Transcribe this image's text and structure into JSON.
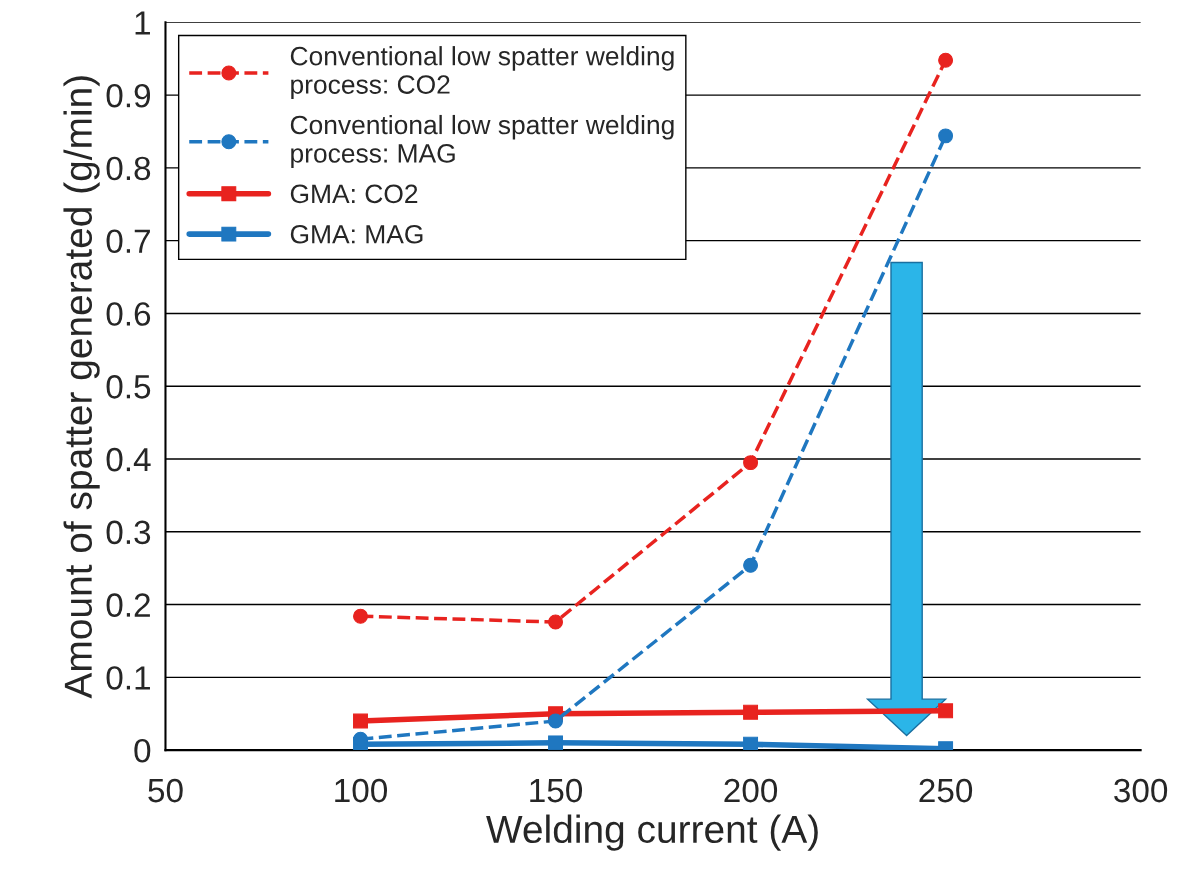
{
  "chart_data": {
    "type": "line",
    "xlabel": "Welding current (A)",
    "ylabel": "Amount of spatter generated (g/min)",
    "x": [
      100,
      150,
      200,
      250
    ],
    "series": [
      {
        "name": "Conventional low spatter welding\nprocess: CO2",
        "color": "#e8231f",
        "values": [
          0.184,
          0.176,
          0.395,
          0.948
        ],
        "line_style": "dashed",
        "marker": "circle"
      },
      {
        "name": "Conventional low spatter welding\nprocess: MAG",
        "color": "#1f77c0",
        "values": [
          0.015,
          0.04,
          0.254,
          0.844
        ],
        "line_style": "dashed",
        "marker": "circle"
      },
      {
        "name": "GMA: CO2",
        "color": "#e8231f",
        "values": [
          0.04,
          0.05,
          0.052,
          0.054
        ],
        "line_style": "solid",
        "marker": "square"
      },
      {
        "name": "GMA: MAG",
        "color": "#1f77c0",
        "values": [
          0.008,
          0.01,
          0.008,
          0.002
        ],
        "line_style": "solid",
        "marker": "square"
      }
    ],
    "xlim": [
      50,
      300
    ],
    "xticks": [
      50,
      100,
      150,
      200,
      250,
      300
    ],
    "ylim": [
      0,
      1
    ],
    "yticks": [
      0,
      0.1,
      0.2,
      0.3,
      0.4,
      0.5,
      0.6,
      0.7,
      0.8,
      0.9,
      1
    ],
    "grid": "y",
    "legend": "top left"
  }
}
